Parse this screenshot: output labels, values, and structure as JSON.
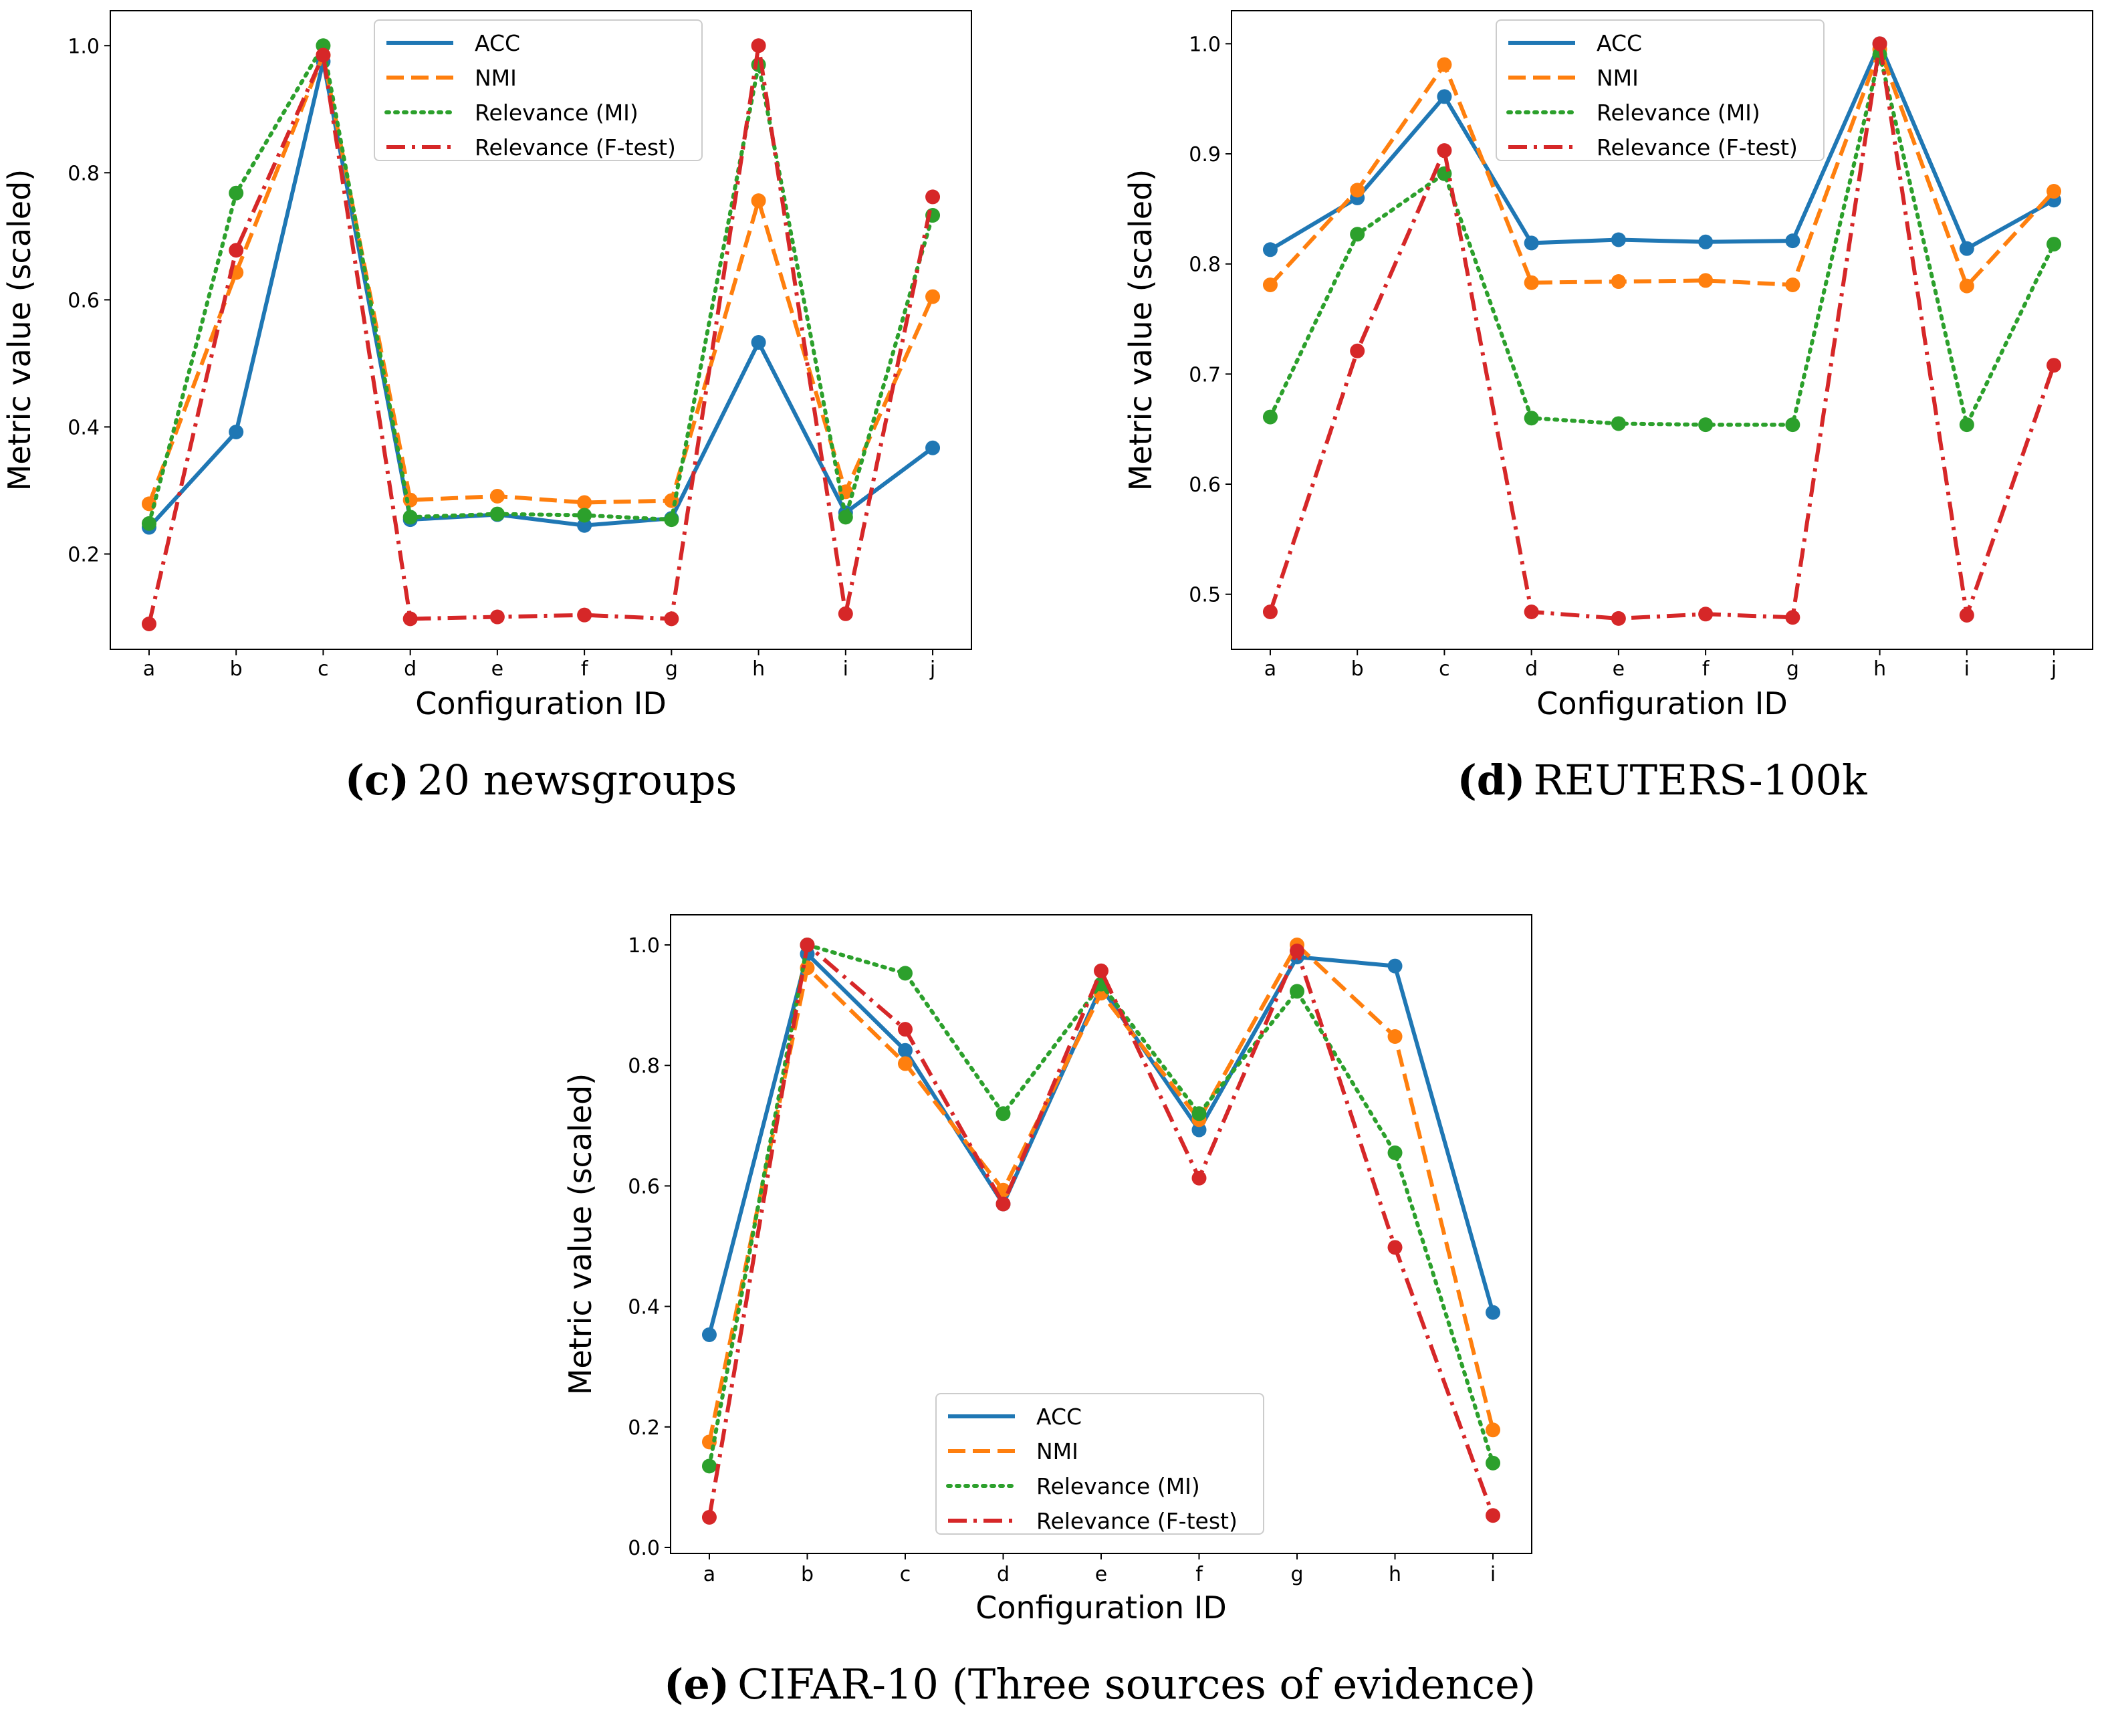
{
  "colors": {
    "ACC": "#1f77b4",
    "NMI": "#ff7f0e",
    "Relevance (MI)": "#2ca02c",
    "Relevance (F-test)": "#d62728"
  },
  "chart_data": [
    {
      "type": "line",
      "caption_letter": "c",
      "caption_text": "20 newsgroups",
      "xlabel": "Configuration ID",
      "ylabel": "Metric value (scaled)",
      "categories": [
        "a",
        "b",
        "c",
        "d",
        "e",
        "f",
        "g",
        "h",
        "i",
        "j"
      ],
      "ylim": [
        0.05,
        1.055
      ],
      "yticks": [
        0.2,
        0.4,
        0.6,
        0.8,
        1.0
      ],
      "ytick_labels": [
        "0.2",
        "0.4",
        "0.6",
        "0.8",
        "1.0"
      ],
      "legend_position": "top-center",
      "series": [
        {
          "name": "ACC",
          "values": [
            0.242,
            0.392,
            0.975,
            0.254,
            0.262,
            0.245,
            0.256,
            0.533,
            0.265,
            0.367
          ]
        },
        {
          "name": "NMI",
          "values": [
            0.279,
            0.643,
            0.985,
            0.285,
            0.291,
            0.281,
            0.284,
            0.756,
            0.298,
            0.605
          ]
        },
        {
          "name": "Relevance (MI)",
          "values": [
            0.248,
            0.768,
            1.0,
            0.258,
            0.263,
            0.261,
            0.254,
            0.97,
            0.258,
            0.733
          ]
        },
        {
          "name": "Relevance (F-test)",
          "values": [
            0.09,
            0.678,
            0.985,
            0.098,
            0.101,
            0.104,
            0.098,
            1.0,
            0.106,
            0.762
          ]
        }
      ]
    },
    {
      "type": "line",
      "caption_letter": "d",
      "caption_text": "REUTERS-100k",
      "xlabel": "Configuration ID",
      "ylabel": "Metric value (scaled)",
      "categories": [
        "a",
        "b",
        "c",
        "d",
        "e",
        "f",
        "g",
        "h",
        "i",
        "j"
      ],
      "ylim": [
        0.45,
        1.03
      ],
      "yticks": [
        0.5,
        0.6,
        0.7,
        0.8,
        0.9,
        1.0
      ],
      "ytick_labels": [
        "0.5",
        "0.6",
        "0.7",
        "0.8",
        "0.9",
        "1.0"
      ],
      "legend_position": "top-center",
      "series": [
        {
          "name": "ACC",
          "values": [
            0.813,
            0.86,
            0.952,
            0.819,
            0.822,
            0.82,
            0.821,
            1.0,
            0.814,
            0.858
          ]
        },
        {
          "name": "NMI",
          "values": [
            0.781,
            0.867,
            0.981,
            0.783,
            0.784,
            0.785,
            0.781,
            0.995,
            0.78,
            0.866
          ]
        },
        {
          "name": "Relevance (MI)",
          "values": [
            0.661,
            0.827,
            0.882,
            0.66,
            0.655,
            0.654,
            0.654,
            0.99,
            0.654,
            0.818
          ]
        },
        {
          "name": "Relevance (F-test)",
          "values": [
            0.484,
            0.721,
            0.903,
            0.484,
            0.478,
            0.482,
            0.479,
            1.0,
            0.481,
            0.708
          ]
        }
      ]
    },
    {
      "type": "line",
      "caption_letter": "e",
      "caption_text": "CIFAR-10 (Three sources of evidence)",
      "xlabel": "Configuration ID",
      "ylabel": "Metric value (scaled)",
      "categories": [
        "a",
        "b",
        "c",
        "d",
        "e",
        "f",
        "g",
        "h",
        "i"
      ],
      "ylim": [
        -0.01,
        1.05
      ],
      "yticks": [
        0.0,
        0.2,
        0.4,
        0.6,
        0.8,
        1.0
      ],
      "ytick_labels": [
        "0.0",
        "0.2",
        "0.4",
        "0.6",
        "0.8",
        "1.0"
      ],
      "legend_position": "lower-center",
      "series": [
        {
          "name": "ACC",
          "values": [
            0.353,
            0.985,
            0.825,
            0.57,
            0.93,
            0.693,
            0.98,
            0.965,
            0.39
          ]
        },
        {
          "name": "NMI",
          "values": [
            0.175,
            0.962,
            0.803,
            0.593,
            0.92,
            0.71,
            1.0,
            0.848,
            0.195
          ]
        },
        {
          "name": "Relevance (MI)",
          "values": [
            0.135,
            1.0,
            0.953,
            0.72,
            0.935,
            0.72,
            0.923,
            0.655,
            0.14
          ]
        },
        {
          "name": "Relevance (F-test)",
          "values": [
            0.05,
            1.0,
            0.86,
            0.57,
            0.957,
            0.613,
            0.99,
            0.498,
            0.053
          ]
        }
      ]
    }
  ]
}
